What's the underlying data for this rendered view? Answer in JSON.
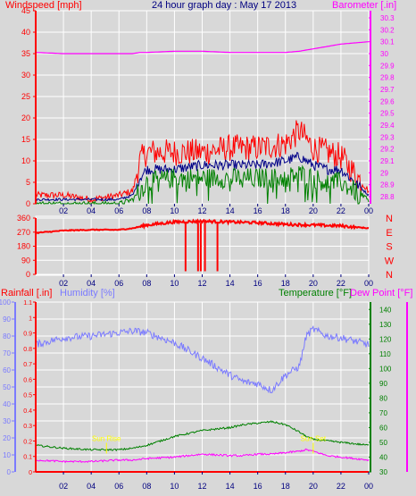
{
  "chart_data": [
    {
      "type": "line",
      "title": "24 hour graph day : May 17 2013",
      "left_label": "Windspeed [mph]",
      "right_label": "Barometer [.in]",
      "x_ticks": [
        "02",
        "04",
        "06",
        "08",
        "10",
        "12",
        "14",
        "16",
        "18",
        "20",
        "22",
        "00"
      ],
      "y_left_ticks": [
        "0",
        "5",
        "10",
        "15",
        "20",
        "25",
        "30",
        "35",
        "40",
        "45"
      ],
      "y_left_lim": [
        0,
        45
      ],
      "y_right_ticks": [
        "28.8",
        "28.9",
        "29",
        "29.1",
        "29.2",
        "29.3",
        "29.4",
        "29.5",
        "29.6",
        "29.7",
        "29.8",
        "29.9",
        "30",
        "30.1",
        "30.2",
        "30.3"
      ],
      "y_right_lim": [
        28.74,
        30.36
      ],
      "x_hours": [
        0,
        2,
        4,
        6,
        7,
        7.5,
        8,
        10,
        12,
        14,
        16,
        18,
        19,
        20,
        21,
        22,
        23,
        24
      ],
      "series": [
        {
          "name": "Windspeed gust",
          "color": "#ff0000",
          "values": [
            2,
            2,
            1,
            2,
            3,
            10,
            12,
            12,
            12,
            13,
            13,
            14,
            17,
            13,
            12,
            11,
            7,
            3
          ]
        },
        {
          "name": "Windspeed average",
          "color": "#000088",
          "values": [
            1,
            1,
            1,
            1,
            2,
            6,
            8,
            8,
            9,
            9,
            9,
            10,
            11,
            9,
            8,
            8,
            5,
            2
          ]
        },
        {
          "name": "Windspeed low",
          "color": "#008000",
          "values": [
            0,
            0,
            0,
            0,
            1,
            3,
            5,
            6,
            6,
            6,
            6,
            6,
            7,
            6,
            5,
            5,
            3,
            1
          ]
        },
        {
          "name": "Barometer",
          "color": "#ff00ff",
          "axis": "right",
          "values": [
            30.01,
            30.0,
            30.0,
            30.0,
            30.0,
            30.01,
            30.01,
            30.02,
            30.02,
            30.01,
            30.01,
            30.01,
            30.02,
            30.04,
            30.06,
            30.08,
            30.09,
            30.1
          ]
        }
      ]
    },
    {
      "type": "line",
      "left_ticks": [
        "0",
        "90",
        "180",
        "270",
        "360"
      ],
      "y_lim": [
        0,
        360
      ],
      "right_labels": [
        "N",
        "W",
        "S",
        "E",
        "N"
      ],
      "x_ticks": [
        "02",
        "04",
        "06",
        "08",
        "10",
        "12",
        "14",
        "16",
        "18",
        "20",
        "22",
        "00"
      ],
      "x_hours": [
        0,
        2,
        4,
        6,
        7,
        8,
        10,
        12,
        14,
        16,
        18,
        20,
        22,
        24
      ],
      "series": [
        {
          "name": "Wind direction",
          "color": "#ff0000",
          "values": [
            265,
            280,
            285,
            285,
            295,
            315,
            335,
            340,
            335,
            330,
            320,
            315,
            310,
            295
          ]
        }
      ],
      "dips": [
        {
          "hour": 10.8,
          "value": 20
        },
        {
          "hour": 11.7,
          "value": 20
        },
        {
          "hour": 11.9,
          "value": 20
        },
        {
          "hour": 12.2,
          "value": 20
        },
        {
          "hour": 13.1,
          "value": 20
        }
      ]
    },
    {
      "type": "line",
      "left_label_1": "Rainfall [.in]",
      "left_label_2": "Humidity [%]",
      "right_label_1": "Temperature [°F]",
      "right_label_2": "Dew Point [°F]",
      "humidity_ticks": [
        "0",
        "10",
        "20",
        "30",
        "40",
        "50",
        "60",
        "70",
        "80",
        "90",
        "100"
      ],
      "humidity_lim": [
        0,
        100
      ],
      "rain_ticks": [
        "0",
        "0.1",
        "0.2",
        "0.3",
        "0.4",
        "0.5",
        "0.6",
        "0.7",
        "0.8",
        "0.9",
        "1",
        "1.1"
      ],
      "rain_lim": [
        0,
        1.1
      ],
      "temp_ticks": [
        "30",
        "40",
        "50",
        "60",
        "70",
        "80",
        "90",
        "100",
        "110",
        "120",
        "130",
        "140"
      ],
      "temp_lim": [
        30,
        145
      ],
      "x_ticks": [
        "02",
        "04",
        "06",
        "08",
        "10",
        "12",
        "14",
        "16",
        "18",
        "20",
        "22",
        "00"
      ],
      "annotations": [
        {
          "text": "Sun Rise",
          "hour": 5.1,
          "value": 0.2
        },
        {
          "text": "Sun Set",
          "hour": 20.0,
          "value": 0.2
        }
      ],
      "x_hours": [
        0,
        2,
        4,
        6,
        7,
        8,
        10,
        12,
        14,
        15,
        16,
        17,
        18,
        19,
        19.5,
        20,
        21,
        22,
        23,
        24
      ],
      "series": [
        {
          "name": "Humidity",
          "color": "#7b7bff",
          "axis": "humidity",
          "values": [
            75,
            79,
            80,
            82,
            83,
            82,
            76,
            67,
            57,
            53,
            52,
            48,
            57,
            62,
            80,
            84,
            80,
            79,
            77,
            75
          ]
        },
        {
          "name": "Temperature",
          "color": "#008000",
          "axis": "temp",
          "values": [
            48,
            46,
            45,
            45,
            46,
            48,
            54,
            58,
            60,
            62,
            63,
            64,
            62,
            57,
            54,
            52,
            51,
            50,
            49,
            48
          ]
        },
        {
          "name": "Dew Point",
          "color": "#ff00ff",
          "axis": "temp",
          "values": [
            38,
            37,
            37,
            38,
            38,
            39,
            40,
            42,
            41,
            41,
            42,
            42,
            43,
            44,
            45,
            44,
            41,
            40,
            39,
            38
          ]
        },
        {
          "name": "Rainfall",
          "color": "#ff0000",
          "axis": "rain",
          "values": [
            0,
            0,
            0,
            0,
            0,
            0,
            0,
            0,
            0,
            0,
            0,
            0,
            0,
            0,
            0,
            0,
            0,
            0,
            0,
            0
          ]
        }
      ]
    }
  ]
}
